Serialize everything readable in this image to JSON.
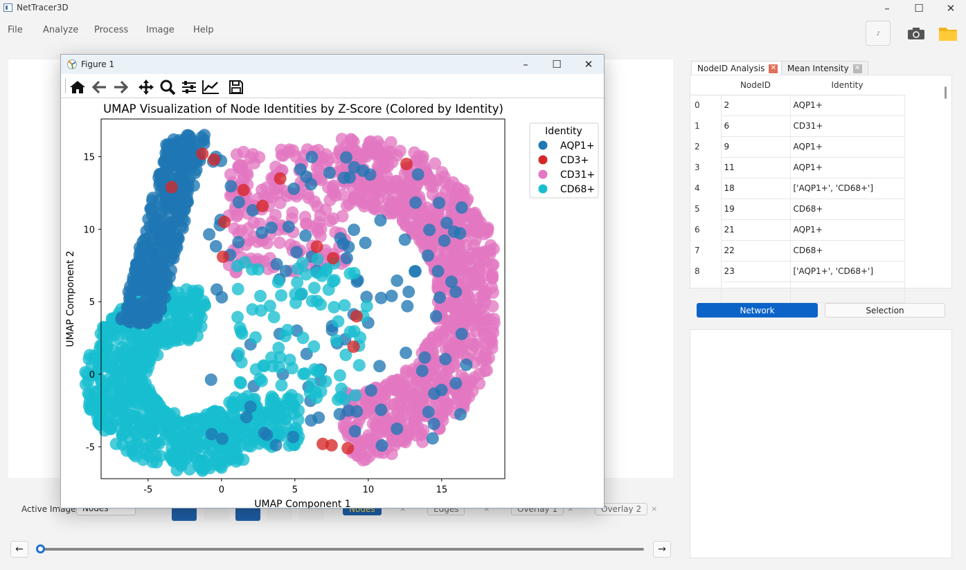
{
  "app": {
    "title": "NetTracer3D",
    "menu": [
      "File",
      "Analyze",
      "Process",
      "Image",
      "Help"
    ],
    "window_controls": [
      "minimize",
      "maximize",
      "close"
    ]
  },
  "toolbar_icons": [
    "small-icon",
    "camera-icon",
    "folder-icon"
  ],
  "right_panel": {
    "tabs": [
      {
        "label": "NodeID Analysis",
        "active": true,
        "close_color": "#e0705a"
      },
      {
        "label": "Mean Intensity",
        "active": false,
        "close_color": "#b9b9b9"
      }
    ],
    "table": {
      "headers": [
        "NodeID",
        "Identity"
      ],
      "rows": [
        {
          "index": "0",
          "node": "2",
          "identity": "AQP1+"
        },
        {
          "index": "1",
          "node": "6",
          "identity": "CD31+"
        },
        {
          "index": "2",
          "node": "9",
          "identity": "AQP1+"
        },
        {
          "index": "3",
          "node": "11",
          "identity": "AQP1+"
        },
        {
          "index": "4",
          "node": "18",
          "identity": "['AQP1+', 'CD68+']"
        },
        {
          "index": "5",
          "node": "19",
          "identity": "CD68+"
        },
        {
          "index": "6",
          "node": "21",
          "identity": "AQP1+"
        },
        {
          "index": "7",
          "node": "22",
          "identity": "CD68+"
        },
        {
          "index": "8",
          "node": "23",
          "identity": "['AQP1+', 'CD68+']"
        }
      ]
    },
    "view_buttons": {
      "network": "Network",
      "selection": "Selection"
    }
  },
  "bottom_bar": {
    "active_image_label": "Active Image:",
    "active_image_value": "Nodes",
    "channel_chips": [
      "Nodes",
      "Edges",
      "Overlay 1",
      "Overlay 2"
    ],
    "close_glyph": "×",
    "prev": "←",
    "next": "→",
    "slider_position": 0.0
  },
  "figure": {
    "window_title": "Figure 1",
    "toolbar_icons": [
      "home-icon",
      "back-icon",
      "forward-icon",
      "pan-icon",
      "zoom-icon",
      "configure-icon",
      "edit-axis-icon",
      "save-icon"
    ]
  },
  "chart_data": {
    "type": "scatter",
    "title": "UMAP Visualization of Node Identities by Z-Score (Colored by Identity)",
    "xlabel": "UMAP Component 1",
    "ylabel": "UMAP Component 2",
    "xlim": [
      -8.2,
      19.3
    ],
    "ylim": [
      -7.2,
      17.6
    ],
    "xticks": [
      -5,
      0,
      5,
      10,
      15
    ],
    "yticks": [
      -5,
      0,
      5,
      10,
      15
    ],
    "grid": false,
    "legend": {
      "title": "Identity",
      "placement": "upper-right-outside"
    },
    "series": [
      {
        "name": "AQP1+",
        "color": "#1f77b4"
      },
      {
        "name": "CD3+",
        "color": "#d62728"
      },
      {
        "name": "CD31+",
        "color": "#e377c2"
      },
      {
        "name": "CD68+",
        "color": "#17becf"
      }
    ],
    "clusters": [
      {
        "series": "AQP1+",
        "region": "upper-left arc",
        "x_range": [
          -6.5,
          -0.5
        ],
        "y_range": [
          3.5,
          16.5
        ]
      },
      {
        "series": "CD68+",
        "region": "lower-left lobe",
        "x_range": [
          -7.5,
          5.5
        ],
        "y_range": [
          -6,
          5
        ]
      },
      {
        "series": "CD31+",
        "region": "right crescent",
        "x_range": [
          0,
          18.5
        ],
        "y_range": [
          -6,
          16
        ]
      },
      {
        "series": "CD3+",
        "region": "scattered",
        "x_range": [
          -5,
          10
        ],
        "y_range": [
          -5,
          15
        ]
      }
    ]
  }
}
